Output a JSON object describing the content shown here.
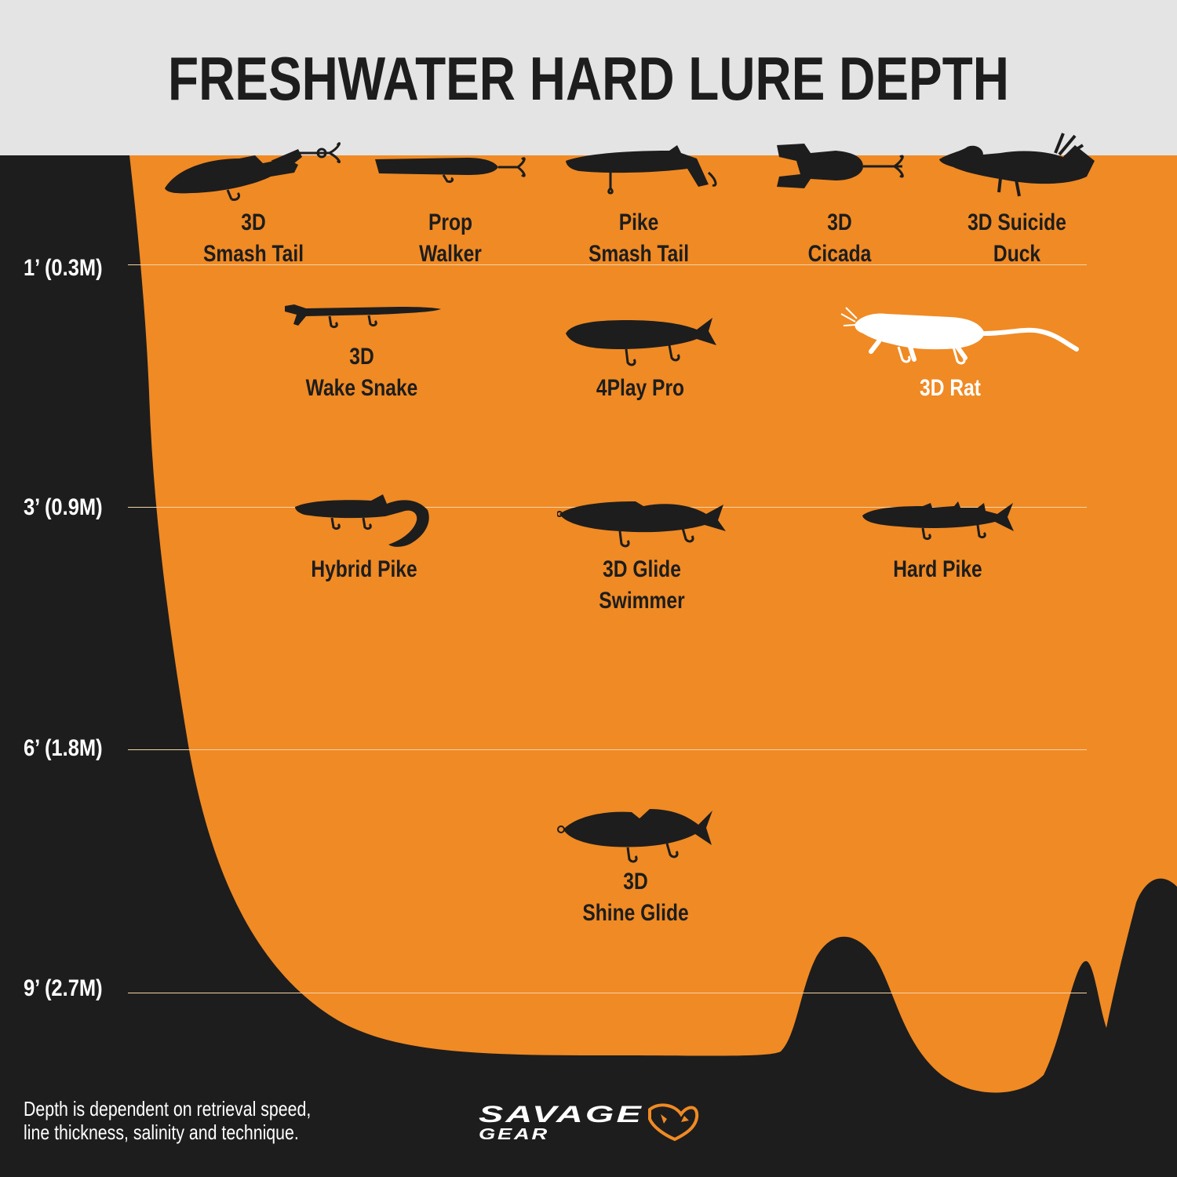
{
  "title": "FRESHWATER HARD LURE DEPTH",
  "colors": {
    "water": "#f08a24",
    "background": "#1d1d1d",
    "header": "#e4e4e4",
    "silhouette": "#1d1d1d",
    "highlight": "#ffffff"
  },
  "depth_marks": [
    {
      "label": "1’ (0.3M)"
    },
    {
      "label": "3’ (0.9M)"
    },
    {
      "label": "6’ (1.8M)"
    },
    {
      "label": "9’ (2.7M)"
    }
  ],
  "lures": [
    {
      "line1": "3D",
      "line2": "Smash Tail",
      "icon": "smash-tail-icon"
    },
    {
      "line1": "Prop",
      "line2": "Walker",
      "icon": "prop-walker-icon"
    },
    {
      "line1": "Pike",
      "line2": "Smash Tail",
      "icon": "pike-smash-tail-icon"
    },
    {
      "line1": "3D",
      "line2": "Cicada",
      "icon": "cicada-icon"
    },
    {
      "line1": "3D Suicide",
      "line2": "Duck",
      "icon": "duck-icon"
    },
    {
      "line1": "3D",
      "line2": "Wake Snake",
      "icon": "wake-snake-icon"
    },
    {
      "line1": "4Play Pro",
      "line2": "",
      "icon": "fourplay-pro-icon"
    },
    {
      "line1": "3D Rat",
      "line2": "",
      "icon": "rat-icon"
    },
    {
      "line1": "Hybrid Pike",
      "line2": "",
      "icon": "hybrid-pike-icon"
    },
    {
      "line1": "3D Glide",
      "line2": "Swimmer",
      "icon": "glide-swimmer-icon"
    },
    {
      "line1": "Hard Pike",
      "line2": "",
      "icon": "hard-pike-icon"
    },
    {
      "line1": "3D",
      "line2": "Shine Glide",
      "icon": "shine-glide-icon"
    }
  ],
  "footnote": {
    "line1": "Depth is dependent on retrieval speed,",
    "line2": "line thickness, salinity and technique."
  },
  "brand": {
    "line1": "SAVAGE",
    "line2": "GEAR",
    "icon": "savage-gear-logo-icon"
  }
}
